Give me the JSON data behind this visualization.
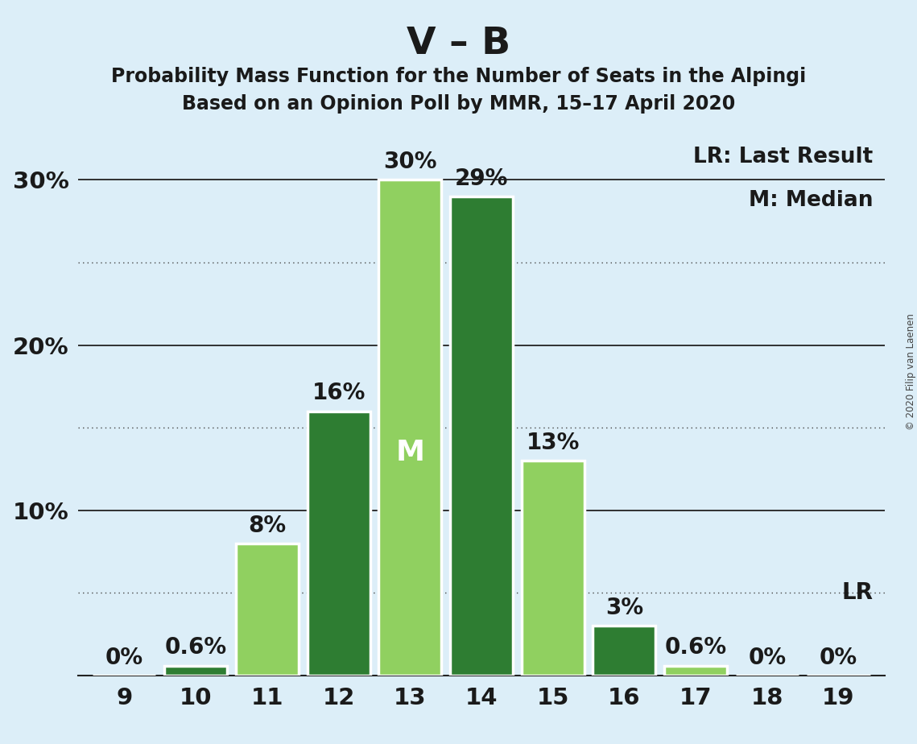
{
  "title_main": "V – B",
  "title_sub1": "Probability Mass Function for the Number of Seats in the Alpingi",
  "title_sub2": "Based on an Opinion Poll by MMR, 15–17 April 2020",
  "seats": [
    9,
    10,
    11,
    12,
    13,
    14,
    15,
    16,
    17,
    18,
    19
  ],
  "values": [
    0.0,
    0.6,
    8.0,
    16.0,
    30.0,
    29.0,
    13.0,
    3.0,
    0.6,
    0.0,
    0.0
  ],
  "bar_colors": [
    "#90d060",
    "#2e7d32",
    "#90d060",
    "#2e7d32",
    "#90d060",
    "#2e7d32",
    "#90d060",
    "#2e7d32",
    "#90d060",
    "#2e7d32",
    "#90d060"
  ],
  "median_seat": 13,
  "median_label": "M",
  "lr_seat": 19,
  "lr_label": "LR",
  "background_color": "#dceef8",
  "bar_edge_color": "#ffffff",
  "ylim_max": 33,
  "solid_lines": [
    10,
    20,
    30
  ],
  "dotted_lines": [
    5,
    15,
    25
  ],
  "legend_lr_text": "LR: Last Result",
  "legend_m_text": "M: Median",
  "copyright_text": "© 2020 Filip van Laenen",
  "bar_label_fontsize": 20,
  "title_main_fontsize": 34,
  "title_sub_fontsize": 17,
  "axis_fontsize": 21,
  "legend_fontsize": 19,
  "text_color": "#1a1a1a"
}
